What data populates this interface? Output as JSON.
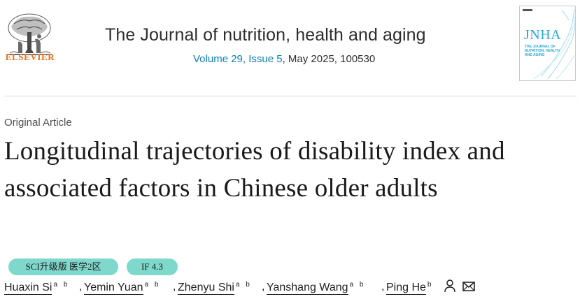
{
  "header": {
    "publisher": "ELSEVIER",
    "journal_title": "The Journal of nutrition, health and aging",
    "volume_issue": "Volume 29, Issue 5",
    "date_id": ", May 2025, 100530",
    "cover": {
      "title": "JNHA",
      "subtitle": "THE JOURNAL OF NUTRITION, HEALTH AND AGING"
    },
    "link_color": "#0c7dbb"
  },
  "article": {
    "type": "Original Article",
    "title": "Longitudinal trajectories of disability index and associated factors in Chinese older adults"
  },
  "badges": {
    "sci": "SCI升级版 医学2区",
    "impact_factor": "IF 4.3",
    "color": "#7fd8cc"
  },
  "authors": [
    {
      "name": "Huaxin Si",
      "affil": "a b"
    },
    {
      "name": "Yemin Yuan",
      "affil": "a b"
    },
    {
      "name": "Zhenyu Shi",
      "affil": "a b"
    },
    {
      "name": "Yanshang Wang",
      "affil": "a b"
    },
    {
      "name": "Ping He",
      "affil": "b"
    }
  ],
  "author_separator": ",",
  "icons": [
    "person-icon",
    "mail-icon"
  ]
}
